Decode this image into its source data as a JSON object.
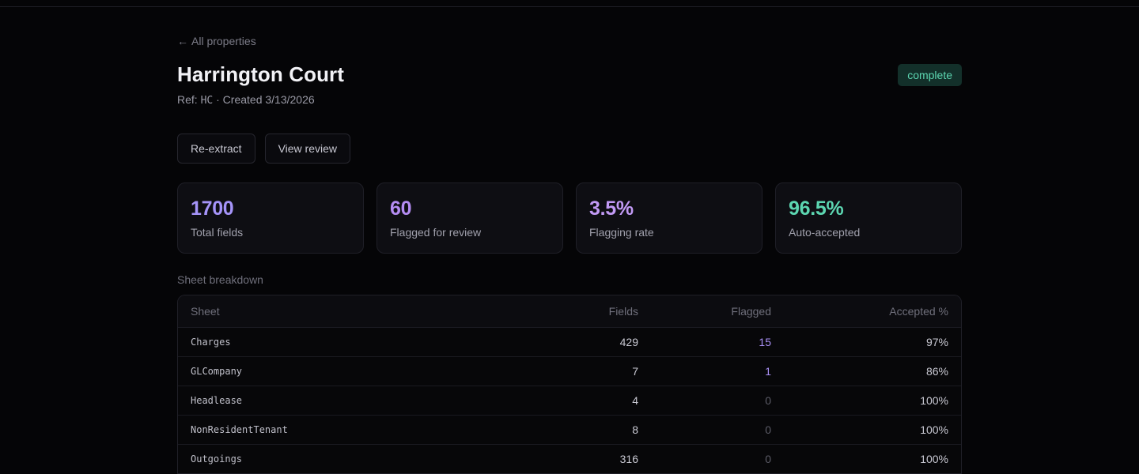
{
  "back_link": {
    "arrow": "←",
    "label": "All properties"
  },
  "property": {
    "title": "Harrington Court",
    "ref_prefix": "Ref: ",
    "ref": "HC",
    "created": " · Created 3/13/2026",
    "status": "complete"
  },
  "actions": {
    "reextract_label": "Re-extract",
    "view_review_label": "View review"
  },
  "stats": [
    {
      "value": "1700",
      "label": "Total fields",
      "color": "#a594f9"
    },
    {
      "value": "60",
      "label": "Flagged for review",
      "color": "#b48cf2"
    },
    {
      "value": "3.5%",
      "label": "Flagging rate",
      "color": "#c29af5"
    },
    {
      "value": "96.5%",
      "label": "Auto-accepted",
      "color": "#5cd6b1"
    }
  ],
  "breakdown": {
    "title": "Sheet breakdown",
    "columns": [
      "Sheet",
      "Fields",
      "Flagged",
      "Accepted %"
    ],
    "rows": [
      {
        "sheet": "Charges",
        "fields": "429",
        "flagged": "15",
        "accepted": "97%"
      },
      {
        "sheet": "GLCompany",
        "fields": "7",
        "flagged": "1",
        "accepted": "86%"
      },
      {
        "sheet": "Headlease",
        "fields": "4",
        "flagged": "0",
        "accepted": "100%"
      },
      {
        "sheet": "NonResidentTenant",
        "fields": "8",
        "flagged": "0",
        "accepted": "100%"
      },
      {
        "sheet": "Outgoings",
        "fields": "316",
        "flagged": "0",
        "accepted": "100%"
      }
    ]
  }
}
